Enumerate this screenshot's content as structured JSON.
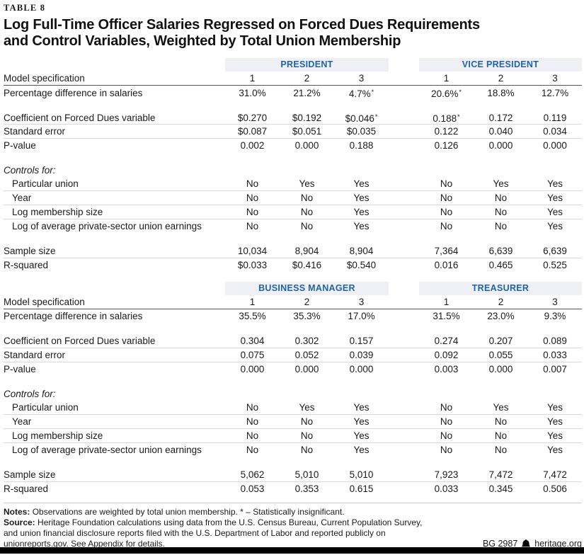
{
  "table_tag": "TABLE 8",
  "title_line1": "Log Full-Time Officer Salaries Regressed on Forced Dues Requirements",
  "title_line2": "and Control Variables, Weighted by Total Union Membership",
  "colors": {
    "accent_blue": "#1e63a8",
    "band_background": "#eef0f6",
    "hairline": "#d9d9d9",
    "dark_rule": "#555555",
    "bottom_bar": "#000000"
  },
  "tables": [
    {
      "groups": [
        "PRESIDENT",
        "VICE PRESIDENT"
      ],
      "rows": [
        {
          "label": "Model specification",
          "values": [
            "1",
            "2",
            "3",
            "1",
            "2",
            "3"
          ],
          "dark_border": true
        },
        {
          "label": "Percentage difference in salaries",
          "values": [
            "31.0%",
            "21.2%",
            "4.7%*",
            "20.6%*",
            "18.8%",
            "12.7%"
          ]
        },
        {
          "spacer": true
        },
        {
          "label": "Coefficient on Forced Dues variable",
          "values": [
            "$0.270",
            "$0.192",
            "$0.046*",
            "0.188*",
            "0.172",
            "0.119"
          ],
          "border": true
        },
        {
          "label": "Standard error",
          "values": [
            "$0.087",
            "$0.051",
            "$0.035",
            "0.122",
            "0.040",
            "0.034"
          ],
          "border": true
        },
        {
          "label": "P-value",
          "values": [
            "0.002",
            "0.000",
            "0.188",
            "0.126",
            "0.000",
            "0.000"
          ]
        },
        {
          "spacer": true
        },
        {
          "label": "Controls for:",
          "italic": true
        },
        {
          "label": "Particular union",
          "indent": true,
          "values": [
            "No",
            "Yes",
            "Yes",
            "No",
            "Yes",
            "Yes"
          ],
          "border": true
        },
        {
          "label": "Year",
          "indent": true,
          "values": [
            "No",
            "No",
            "Yes",
            "No",
            "No",
            "Yes"
          ],
          "border": true
        },
        {
          "label": "Log membership size",
          "indent": true,
          "values": [
            "No",
            "No",
            "Yes",
            "No",
            "No",
            "Yes"
          ],
          "border": true
        },
        {
          "label": "Log of average private-sector union earnings",
          "indent": true,
          "values": [
            "No",
            "No",
            "Yes",
            "No",
            "No",
            "Yes"
          ]
        },
        {
          "spacer": true
        },
        {
          "label": "Sample size",
          "values": [
            "10,034",
            "8,904",
            "8,904",
            "7,364",
            "6,639",
            "6,639"
          ],
          "border": true
        },
        {
          "label": "R-squared",
          "values": [
            "$0.033",
            "$0.416",
            "$0.540",
            "0.016",
            "0.465",
            "0.525"
          ]
        }
      ]
    },
    {
      "groups": [
        "BUSINESS MANAGER",
        "TREASURER"
      ],
      "rows": [
        {
          "label": "Model specification",
          "values": [
            "1",
            "2",
            "3",
            "1",
            "2",
            "3"
          ],
          "dark_border": true
        },
        {
          "label": "Percentage difference in salaries",
          "values": [
            "35.5%",
            "35.3%",
            "17.0%",
            "31.5%",
            "23.0%",
            "9.3%"
          ]
        },
        {
          "spacer": true
        },
        {
          "label": "Coefficient on Forced Dues variable",
          "values": [
            "0.304",
            "0.302",
            "0.157",
            "0.274",
            "0.207",
            "0.089"
          ],
          "border": true
        },
        {
          "label": "Standard error",
          "values": [
            "0.075",
            "0.052",
            "0.039",
            "0.092",
            "0.055",
            "0.033"
          ],
          "border": true
        },
        {
          "label": "P-value",
          "values": [
            "0.000",
            "0.000",
            "0.000",
            "0.003",
            "0.000",
            "0.007"
          ]
        },
        {
          "spacer": true
        },
        {
          "label": "Controls for:",
          "italic": true
        },
        {
          "label": "Particular union",
          "indent": true,
          "values": [
            "No",
            "Yes",
            "Yes",
            "No",
            "Yes",
            "Yes"
          ],
          "border": true
        },
        {
          "label": "Year",
          "indent": true,
          "values": [
            "No",
            "No",
            "Yes",
            "No",
            "No",
            "Yes"
          ],
          "border": true
        },
        {
          "label": "Log membership size",
          "indent": true,
          "values": [
            "No",
            "No",
            "Yes",
            "No",
            "No",
            "Yes"
          ],
          "border": true
        },
        {
          "label": "Log of average private-sector union earnings",
          "indent": true,
          "values": [
            "No",
            "No",
            "Yes",
            "No",
            "No",
            "Yes"
          ]
        },
        {
          "spacer": true
        },
        {
          "label": "Sample size",
          "values": [
            "5,062",
            "5,010",
            "5,010",
            "7,923",
            "7,472",
            "7,472"
          ],
          "border": true
        },
        {
          "label": "R-squared",
          "values": [
            "0.053",
            "0.353",
            "0.615",
            "0.033",
            "0.345",
            "0.506"
          ]
        }
      ]
    }
  ],
  "footer": {
    "notes_label": "Notes:",
    "notes_text": "Observations are weighted by total union membership.  * – Statistically insignificant.",
    "source_label": "Source:",
    "source_line1": "Heritage Foundation calculations using data from the U.S. Census Bureau, Current Population Survey,",
    "source_line2": "and union financial disclosure reports filed with the U.S. Department of Labor and reported publicly on",
    "source_line3": "unionreports.gov. See Appendix for details.",
    "doc_id": "BG 2987",
    "site": "heritage.org"
  }
}
